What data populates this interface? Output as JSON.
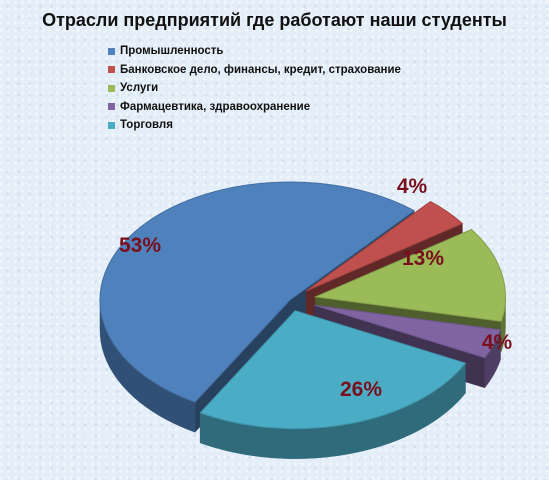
{
  "chart_data": {
    "type": "pie",
    "title": "Отрасли предприятий где работают наши студенты",
    "legend_position": "top",
    "slices": [
      {
        "name": "Промышленность",
        "value": 53,
        "label": "53%",
        "color": "#4f81bd"
      },
      {
        "name": "Банковское дело, финансы, кредит, страхование",
        "value": 4,
        "label": "4%",
        "color": "#c0504d"
      },
      {
        "name": "Услуги",
        "value": 13,
        "label": "13%",
        "color": "#9bbb59"
      },
      {
        "name": "Фармацевтика, здравоохранение",
        "value": 4,
        "label": "4%",
        "color": "#8064a2"
      },
      {
        "name": "Торговля",
        "value": 26,
        "label": "26%",
        "color": "#4bacc6"
      }
    ]
  }
}
